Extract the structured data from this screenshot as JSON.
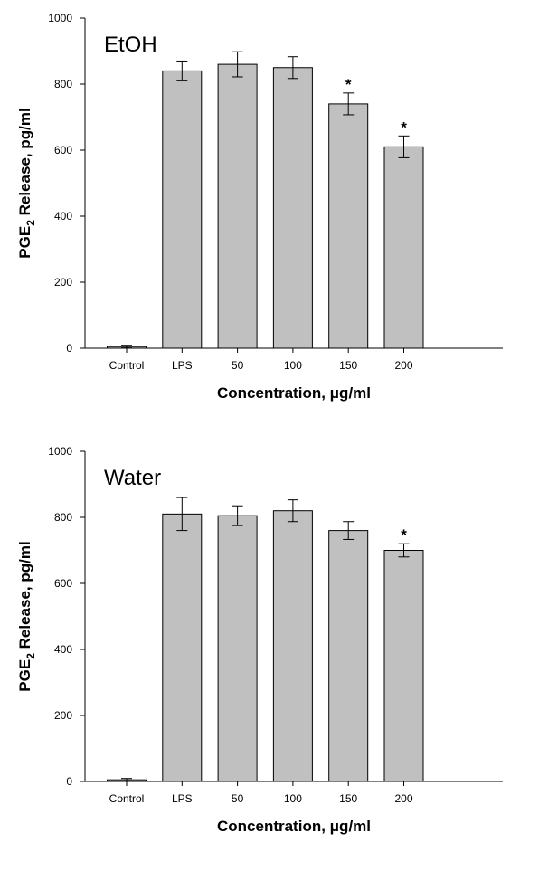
{
  "chart_data": [
    {
      "type": "bar",
      "label": "EtOH",
      "categories": [
        "Control",
        "LPS",
        "50",
        "100",
        "150",
        "200"
      ],
      "values": [
        5,
        840,
        860,
        850,
        740,
        610
      ],
      "errors": [
        4,
        30,
        38,
        33,
        33,
        33
      ],
      "significance": [
        "",
        "",
        "",
        "",
        "*",
        "*"
      ],
      "xlabel": "Concentration, μg/ml",
      "ylabel_main": "PGE",
      "ylabel_sub": "2",
      "ylabel_rest": " Release, pg/ml",
      "ylim": [
        0,
        1000
      ],
      "yticks": [
        0,
        200,
        400,
        600,
        800,
        1000
      ],
      "bar_color": "#c0c0c0",
      "grid": false
    },
    {
      "type": "bar",
      "label": "Water",
      "categories": [
        "Control",
        "LPS",
        "50",
        "100",
        "150",
        "200"
      ],
      "values": [
        5,
        810,
        805,
        820,
        760,
        700
      ],
      "errors": [
        4,
        50,
        30,
        33,
        27,
        20
      ],
      "significance": [
        "",
        "",
        "",
        "",
        "",
        "*"
      ],
      "xlabel": "Concentration, μg/ml",
      "ylabel_main": "PGE",
      "ylabel_sub": "2",
      "ylabel_rest": " Release, pg/ml",
      "ylim": [
        0,
        1000
      ],
      "yticks": [
        0,
        200,
        400,
        600,
        800,
        1000
      ],
      "bar_color": "#c0c0c0",
      "grid": false
    }
  ]
}
